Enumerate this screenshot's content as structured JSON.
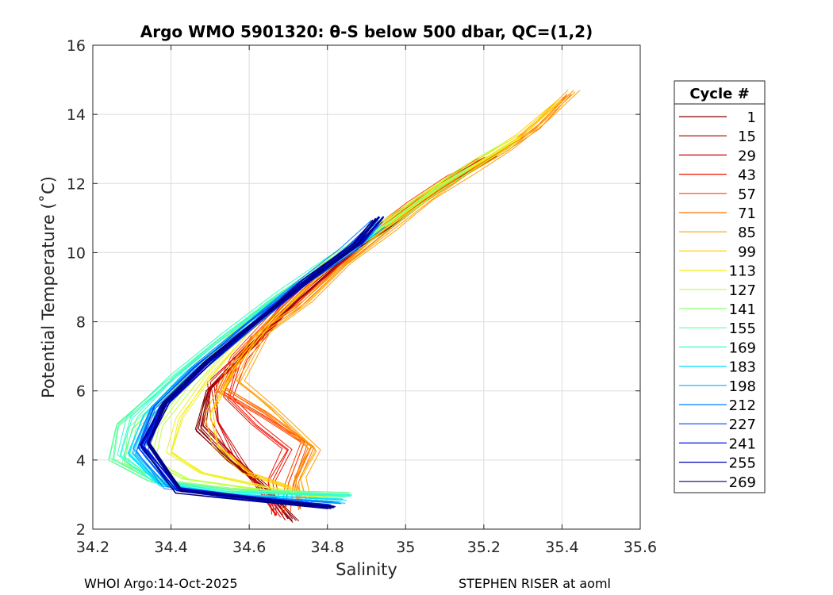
{
  "chart_data": {
    "type": "line",
    "title": "Argo WMO 5901320: θ-S below 500 dbar,  QC=(1,2)",
    "xlabel": "Salinity",
    "ylabel": "Potential Temperature (˚C)",
    "xlim": [
      34.2,
      35.6
    ],
    "ylim": [
      2,
      16
    ],
    "x_ticks": [
      34.2,
      34.4,
      34.6,
      34.8,
      35,
      35.2,
      35.4,
      35.6
    ],
    "x_tick_labels": [
      "34.2",
      "34.4",
      "34.6",
      "34.8",
      "35",
      "35.2",
      "35.4",
      "35.6"
    ],
    "y_ticks": [
      2,
      4,
      6,
      8,
      10,
      12,
      14,
      16
    ],
    "y_tick_labels": [
      "2",
      "4",
      "6",
      "8",
      "10",
      "12",
      "14",
      "16"
    ],
    "grid": true,
    "legend": {
      "title": "Cycle #",
      "placement": "right, outside plot",
      "entries": [
        "1",
        "15",
        "29",
        "43",
        "57",
        "71",
        "85",
        "99",
        "113",
        "127",
        "141",
        "155",
        "169",
        "183",
        "198",
        "212",
        "227",
        "241",
        "255",
        "269"
      ]
    },
    "colormap": [
      "#800000",
      "#a00000",
      "#d00000",
      "#f01000",
      "#ff4000",
      "#ff7000",
      "#ffa000",
      "#ffd000",
      "#f0f020",
      "#c0ff40",
      "#90ff70",
      "#60ffa0",
      "#30ffd0",
      "#00e0ff",
      "#00b0ff",
      "#0080ff",
      "#0040ff",
      "#0010e0",
      "#0000b0",
      "#000080"
    ],
    "series": [
      {
        "cycle": "1",
        "points": [
          [
            34.72,
            2.25
          ],
          [
            34.64,
            3.2
          ],
          [
            34.55,
            4.0
          ],
          [
            34.47,
            4.9
          ],
          [
            34.49,
            6.0
          ],
          [
            34.6,
            7.3
          ],
          [
            34.72,
            8.6
          ],
          [
            34.84,
            9.8
          ],
          [
            34.95,
            10.7
          ],
          [
            35.05,
            11.6
          ],
          [
            35.14,
            12.2
          ],
          [
            35.22,
            12.75
          ]
        ]
      },
      {
        "cycle": "15",
        "points": [
          [
            34.7,
            2.3
          ],
          [
            34.64,
            3.25
          ],
          [
            34.56,
            4.05
          ],
          [
            34.48,
            5.0
          ],
          [
            34.5,
            6.1
          ],
          [
            34.62,
            7.4
          ],
          [
            34.73,
            8.7
          ],
          [
            34.85,
            9.85
          ],
          [
            34.96,
            10.8
          ],
          [
            35.06,
            11.65
          ],
          [
            35.15,
            12.3
          ],
          [
            35.23,
            12.8
          ]
        ]
      },
      {
        "cycle": "29",
        "points": [
          [
            34.68,
            2.35
          ],
          [
            34.62,
            3.3
          ],
          [
            34.57,
            4.1
          ],
          [
            34.52,
            5.1
          ],
          [
            34.51,
            6.2
          ],
          [
            34.6,
            7.2
          ],
          [
            34.7,
            8.5
          ],
          [
            34.82,
            9.7
          ],
          [
            34.93,
            10.6
          ],
          [
            35.04,
            11.5
          ],
          [
            35.13,
            12.2
          ],
          [
            35.21,
            12.7
          ]
        ]
      },
      {
        "cycle": "43",
        "points": [
          [
            34.67,
            2.4
          ],
          [
            34.66,
            3.4
          ],
          [
            34.7,
            4.3
          ],
          [
            34.62,
            5.0
          ],
          [
            34.55,
            5.8
          ],
          [
            34.58,
            6.9
          ],
          [
            34.68,
            8.2
          ],
          [
            34.8,
            9.5
          ],
          [
            34.92,
            10.5
          ],
          [
            35.03,
            11.45
          ],
          [
            35.12,
            12.15
          ],
          [
            35.2,
            12.7
          ]
        ]
      },
      {
        "cycle": "57",
        "points": [
          [
            34.69,
            2.5
          ],
          [
            34.7,
            3.3
          ],
          [
            34.74,
            4.5
          ],
          [
            34.63,
            5.3
          ],
          [
            34.52,
            6.0
          ],
          [
            34.56,
            7.0
          ],
          [
            34.67,
            8.3
          ],
          [
            34.79,
            9.6
          ],
          [
            34.91,
            10.55
          ],
          [
            35.02,
            11.45
          ],
          [
            35.12,
            12.2
          ],
          [
            35.21,
            12.75
          ]
        ]
      },
      {
        "cycle": "71",
        "points": [
          [
            34.73,
            2.6
          ],
          [
            34.72,
            3.4
          ],
          [
            34.76,
            4.4
          ],
          [
            34.64,
            5.4
          ],
          [
            34.54,
            6.1
          ],
          [
            34.61,
            7.6
          ],
          [
            34.72,
            8.4
          ],
          [
            34.83,
            9.6
          ],
          [
            34.94,
            10.6
          ],
          [
            35.05,
            11.5
          ],
          [
            35.14,
            12.25
          ],
          [
            35.24,
            12.9
          ],
          [
            35.33,
            13.6
          ],
          [
            35.42,
            14.6
          ]
        ]
      },
      {
        "cycle": "85",
        "points": [
          [
            34.75,
            2.7
          ],
          [
            34.73,
            3.5
          ],
          [
            34.77,
            4.3
          ],
          [
            34.66,
            5.5
          ],
          [
            34.57,
            6.3
          ],
          [
            34.64,
            7.7
          ],
          [
            34.75,
            8.6
          ],
          [
            34.85,
            9.7
          ],
          [
            34.95,
            10.6
          ],
          [
            35.06,
            11.55
          ],
          [
            35.16,
            12.3
          ],
          [
            35.26,
            13.0
          ],
          [
            35.35,
            13.8
          ],
          [
            35.43,
            14.7
          ]
        ]
      },
      {
        "cycle": "99",
        "points": [
          [
            34.78,
            2.8
          ],
          [
            34.7,
            3.2
          ],
          [
            34.6,
            3.6
          ],
          [
            34.52,
            4.4
          ],
          [
            34.5,
            5.3
          ],
          [
            34.56,
            6.6
          ],
          [
            34.66,
            8.0
          ],
          [
            34.77,
            9.2
          ],
          [
            34.89,
            10.3
          ],
          [
            35.0,
            11.2
          ],
          [
            35.1,
            12.0
          ],
          [
            35.2,
            12.7
          ],
          [
            35.3,
            13.4
          ],
          [
            35.4,
            14.4
          ]
        ]
      },
      {
        "cycle": "113",
        "points": [
          [
            34.8,
            2.85
          ],
          [
            34.62,
            3.25
          ],
          [
            34.48,
            3.6
          ],
          [
            34.4,
            4.2
          ],
          [
            34.42,
            5.2
          ],
          [
            34.5,
            6.4
          ],
          [
            34.6,
            7.7
          ],
          [
            34.73,
            9.0
          ],
          [
            34.86,
            10.1
          ],
          [
            34.98,
            11.0
          ],
          [
            35.09,
            11.9
          ],
          [
            35.19,
            12.6
          ],
          [
            35.29,
            13.3
          ]
        ]
      },
      {
        "cycle": "127",
        "points": [
          [
            34.82,
            2.9
          ],
          [
            34.6,
            3.2
          ],
          [
            34.44,
            3.45
          ],
          [
            34.35,
            4.0
          ],
          [
            34.37,
            5.0
          ],
          [
            34.45,
            6.2
          ],
          [
            34.56,
            7.5
          ],
          [
            34.7,
            8.8
          ],
          [
            34.83,
            9.9
          ],
          [
            34.95,
            10.8
          ],
          [
            35.07,
            11.8
          ],
          [
            35.17,
            12.5
          ],
          [
            35.27,
            13.2
          ]
        ]
      },
      {
        "cycle": "141",
        "points": [
          [
            34.84,
            2.95
          ],
          [
            34.56,
            3.15
          ],
          [
            34.38,
            3.4
          ],
          [
            34.28,
            3.9
          ],
          [
            34.3,
            4.9
          ],
          [
            34.41,
            6.1
          ],
          [
            34.54,
            7.4
          ],
          [
            34.68,
            8.7
          ],
          [
            34.82,
            9.8
          ],
          [
            34.94,
            10.7
          ],
          [
            35.06,
            11.7
          ],
          [
            35.16,
            12.4
          ]
        ]
      },
      {
        "cycle": "155",
        "points": [
          [
            34.85,
            3.0
          ],
          [
            34.54,
            3.1
          ],
          [
            34.34,
            3.4
          ],
          [
            34.24,
            4.0
          ],
          [
            34.26,
            5.0
          ],
          [
            34.38,
            6.2
          ],
          [
            34.51,
            7.4
          ],
          [
            34.65,
            8.6
          ],
          [
            34.79,
            9.7
          ],
          [
            34.93,
            10.7
          ]
        ]
      },
      {
        "cycle": "169",
        "points": [
          [
            34.86,
            2.95
          ],
          [
            34.55,
            3.05
          ],
          [
            34.36,
            3.35
          ],
          [
            34.27,
            4.1
          ],
          [
            34.3,
            5.2
          ],
          [
            34.41,
            6.4
          ],
          [
            34.54,
            7.6
          ],
          [
            34.68,
            8.8
          ],
          [
            34.81,
            9.8
          ],
          [
            34.92,
            10.5
          ]
        ]
      },
      {
        "cycle": "183",
        "points": [
          [
            34.84,
            2.85
          ],
          [
            34.56,
            3.0
          ],
          [
            34.37,
            3.3
          ],
          [
            34.29,
            4.2
          ],
          [
            34.33,
            5.3
          ],
          [
            34.44,
            6.5
          ],
          [
            34.57,
            7.7
          ],
          [
            34.7,
            8.9
          ],
          [
            34.83,
            9.9
          ],
          [
            34.92,
            10.6
          ]
        ]
      },
      {
        "cycle": "198",
        "points": [
          [
            34.83,
            2.8
          ],
          [
            34.57,
            2.95
          ],
          [
            34.39,
            3.25
          ],
          [
            34.31,
            4.2
          ],
          [
            34.35,
            5.4
          ],
          [
            34.46,
            6.6
          ],
          [
            34.59,
            7.8
          ],
          [
            34.72,
            9.0
          ],
          [
            34.84,
            10.0
          ],
          [
            34.93,
            10.8
          ]
        ]
      },
      {
        "cycle": "212",
        "points": [
          [
            34.82,
            2.75
          ],
          [
            34.58,
            2.95
          ],
          [
            34.4,
            3.2
          ],
          [
            34.32,
            4.3
          ],
          [
            34.36,
            5.5
          ],
          [
            34.47,
            6.7
          ],
          [
            34.6,
            7.9
          ],
          [
            34.73,
            9.1
          ],
          [
            34.85,
            10.1
          ],
          [
            34.93,
            10.9
          ]
        ]
      },
      {
        "cycle": "227",
        "points": [
          [
            34.81,
            2.7
          ],
          [
            34.58,
            2.93
          ],
          [
            34.41,
            3.18
          ],
          [
            34.33,
            4.35
          ],
          [
            34.37,
            5.55
          ],
          [
            34.48,
            6.75
          ],
          [
            34.61,
            7.95
          ],
          [
            34.74,
            9.15
          ],
          [
            34.86,
            10.15
          ],
          [
            34.93,
            10.95
          ]
        ]
      },
      {
        "cycle": "241",
        "points": [
          [
            34.8,
            2.65
          ],
          [
            34.59,
            2.9
          ],
          [
            34.42,
            3.15
          ],
          [
            34.33,
            4.4
          ],
          [
            34.38,
            5.6
          ],
          [
            34.49,
            6.8
          ],
          [
            34.62,
            8.0
          ],
          [
            34.75,
            9.2
          ],
          [
            34.87,
            10.2
          ],
          [
            34.93,
            11.0
          ]
        ]
      },
      {
        "cycle": "255",
        "points": [
          [
            34.81,
            2.6
          ],
          [
            34.6,
            2.88
          ],
          [
            34.42,
            3.12
          ],
          [
            34.34,
            4.45
          ],
          [
            34.39,
            5.65
          ],
          [
            34.5,
            6.85
          ],
          [
            34.63,
            8.05
          ],
          [
            34.76,
            9.25
          ],
          [
            34.88,
            10.25
          ],
          [
            34.94,
            11.0
          ]
        ]
      },
      {
        "cycle": "269",
        "points": [
          [
            34.82,
            2.65
          ],
          [
            34.6,
            2.9
          ],
          [
            34.43,
            3.1
          ],
          [
            34.34,
            4.5
          ],
          [
            34.39,
            5.7
          ],
          [
            34.5,
            6.9
          ],
          [
            34.63,
            8.1
          ],
          [
            34.76,
            9.3
          ],
          [
            34.88,
            10.3
          ],
          [
            34.93,
            11.0
          ]
        ]
      }
    ]
  },
  "footer": {
    "left": "WHOI Argo:14-Oct-2025",
    "right": "STEPHEN RISER at aoml"
  }
}
